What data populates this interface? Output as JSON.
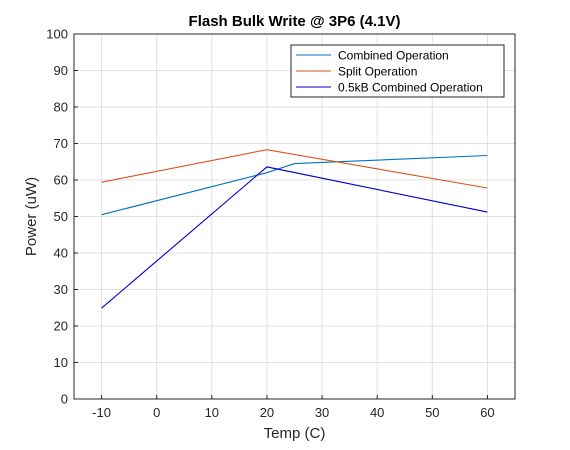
{
  "chart_data": {
    "type": "line",
    "title": "Flash Bulk Write @ 3P6 (4.1V)",
    "xlabel": "Temp (C)",
    "ylabel": "Power (uW)",
    "xlim": [
      -15,
      65
    ],
    "ylim": [
      0,
      100
    ],
    "xticks": [
      -10,
      0,
      10,
      20,
      30,
      40,
      50,
      60
    ],
    "yticks": [
      0,
      10,
      20,
      30,
      40,
      50,
      60,
      70,
      80,
      90,
      100
    ],
    "grid": true,
    "legend_position": "top-right",
    "series": [
      {
        "name": "Combined Operation",
        "color": "#0072BD",
        "x": [
          -10,
          20,
          25,
          60
        ],
        "y": [
          50.5,
          62.0,
          64.5,
          66.7
        ]
      },
      {
        "name": "Split Operation",
        "color": "#D95319",
        "x": [
          -10,
          20,
          60
        ],
        "y": [
          59.4,
          68.3,
          57.8
        ]
      },
      {
        "name": "0.5kB Combined Operation",
        "color": "#0000CC",
        "x": [
          -10,
          20,
          60
        ],
        "y": [
          24.9,
          63.6,
          51.2
        ]
      }
    ]
  }
}
